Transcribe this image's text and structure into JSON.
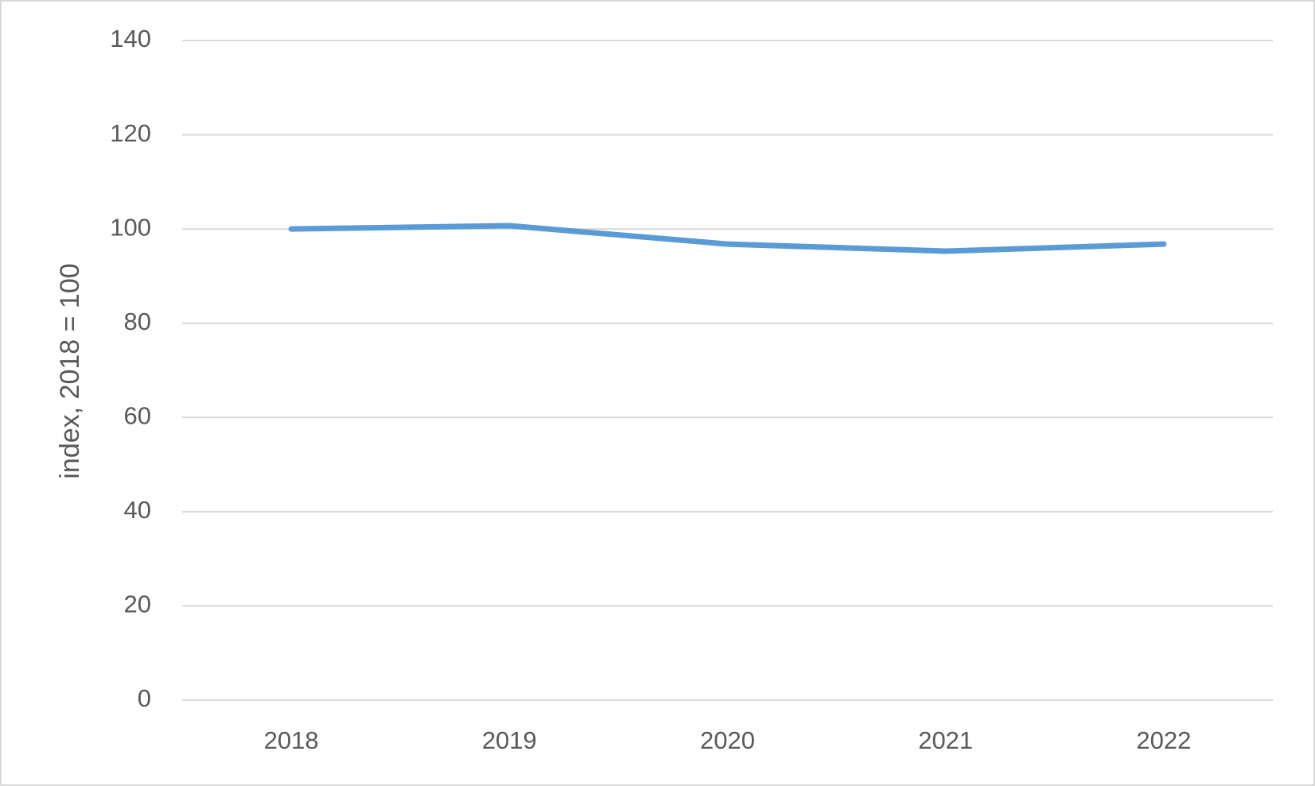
{
  "chart_data": {
    "type": "line",
    "y_label": "index, 2018 = 100",
    "categories": [
      "2018",
      "2019",
      "2020",
      "2021",
      "2022"
    ],
    "values": [
      100,
      100.7,
      96.8,
      95.3,
      96.8
    ],
    "color": "#5b9bd5",
    "ylim": [
      0,
      140
    ],
    "yticks": [
      0,
      20,
      40,
      60,
      80,
      100,
      120,
      140
    ],
    "grid": true
  }
}
